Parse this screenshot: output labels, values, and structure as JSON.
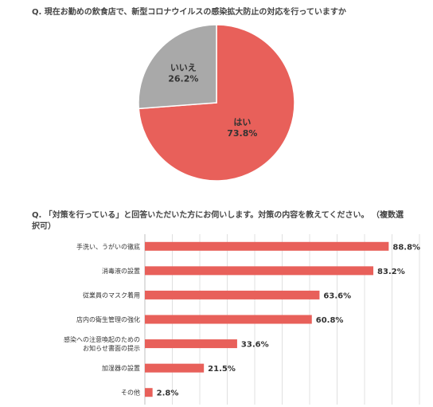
{
  "chart_data": [
    {
      "type": "pie",
      "title": "Q.  現在お勤めの飲食店で、新型コロナウイルスの感染拡大防止の対応を行っていますか",
      "slices": [
        {
          "label": "はい",
          "value_label": "73.8%",
          "value": 73.8,
          "color": "#e8605a"
        },
        {
          "label": "いいえ",
          "value_label": "26.2%",
          "value": 26.2,
          "color": "#a9a9a9"
        }
      ]
    },
    {
      "type": "bar",
      "orientation": "horizontal",
      "title": "Q.  「対策を行っている」と回答いただいた方にお伺いします。対策の内容を教えてください。  （複数選択可）",
      "xlim": [
        0,
        100
      ],
      "grid": true,
      "bar_color": "#e8605a",
      "categories": [
        [
          "手洗い、うがいの徹底"
        ],
        [
          "消毒液の設置"
        ],
        [
          "従業員のマスク着用"
        ],
        [
          "店内の衛生管理の強化"
        ],
        [
          "感染への注意喚起のための",
          "お知らせ書面の提示"
        ],
        [
          "加湿器の設置"
        ],
        [
          "その他"
        ]
      ],
      "values": [
        88.8,
        83.2,
        63.6,
        60.8,
        33.6,
        21.5,
        2.8
      ],
      "value_labels": [
        "88.8%",
        "83.2%",
        "63.6%",
        "60.8%",
        "33.6%",
        "21.5%",
        "2.8%"
      ]
    }
  ]
}
